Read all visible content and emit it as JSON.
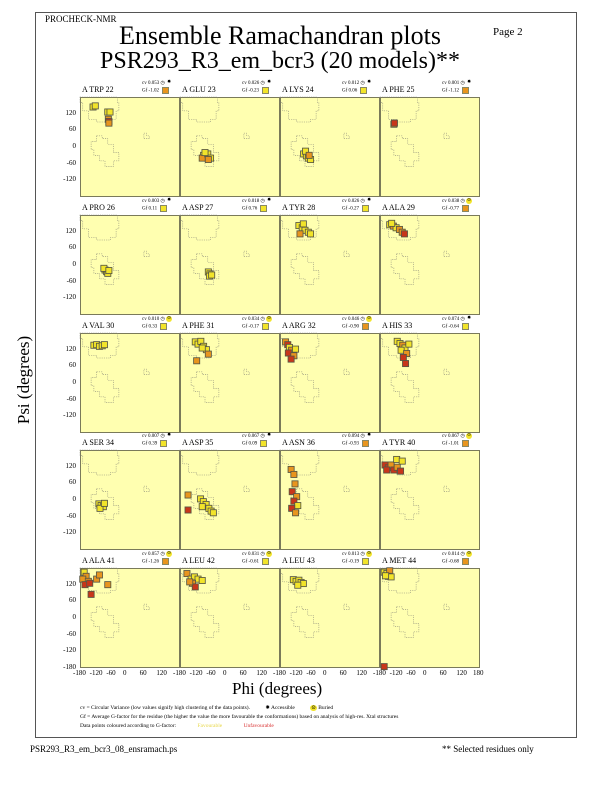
{
  "header": {
    "program": "PROCHECK-NMR",
    "title": "Ensemble Ramachandran plots",
    "subtitle": "PSR293_R3_em_bcr3 (20 models)**",
    "page": "Page  2"
  },
  "axes": {
    "xlabel": "Phi (degrees)",
    "ylabel": "Psi (degrees)",
    "xticks": [
      "-180",
      "-120",
      "-60",
      "0",
      "60",
      "120",
      "180"
    ],
    "yticks": [
      "120",
      "60",
      "0",
      "-60",
      "-120",
      "-180"
    ]
  },
  "colors": {
    "background": "#ffffb0",
    "favourable": "#f2e42a",
    "medium": "#e8951e",
    "unfavourable": "#c8361a"
  },
  "chart_data": {
    "type": "scatter",
    "xlabel": "Phi (degrees)",
    "ylabel": "Psi (degrees)",
    "xlim": [
      -180,
      180
    ],
    "ylim": [
      -180,
      180
    ],
    "panels": [
      {
        "label": "A TRP 22",
        "cv": "cv 0.053",
        "gf": "Gf -1.02",
        "gf_color": "medium",
        "access": "accessible",
        "points": [
          [
            -133,
            144,
            "f"
          ],
          [
            -125,
            148,
            "f"
          ],
          [
            -80,
            126,
            "f"
          ],
          [
            -72,
            126,
            "f"
          ],
          [
            -78,
            100,
            "m"
          ],
          [
            -76,
            92,
            "u"
          ],
          [
            -76,
            86,
            "m"
          ]
        ]
      },
      {
        "label": "A GLU 23",
        "cv": "cv 0.026",
        "gf": "Gf -0.23",
        "gf_color": "favourable",
        "access": "accessible",
        "points": [
          [
            -95,
            -30,
            "f"
          ],
          [
            -85,
            -35,
            "f"
          ],
          [
            -100,
            -40,
            "m"
          ],
          [
            -80,
            -25,
            "f"
          ],
          [
            -70,
            -40,
            "f"
          ],
          [
            -90,
            -20,
            "f"
          ],
          [
            -78,
            -45,
            "m"
          ]
        ]
      },
      {
        "label": "A LYS 24",
        "cv": "cv 0.012",
        "gf": "Gf 0.06",
        "gf_color": "favourable",
        "access": "accessible",
        "points": [
          [
            -95,
            -25,
            "f"
          ],
          [
            -85,
            -32,
            "f"
          ],
          [
            -78,
            -40,
            "f"
          ],
          [
            -70,
            -45,
            "f"
          ],
          [
            -88,
            -15,
            "f"
          ],
          [
            -75,
            -30,
            "m"
          ]
        ]
      },
      {
        "label": "A PHE 25",
        "cv": "cv 0.001",
        "gf": "Gf -1.12",
        "gf_color": "medium",
        "access": "accessible",
        "points": [
          [
            -130,
            82,
            "m"
          ],
          [
            -128,
            86,
            "u"
          ]
        ]
      },
      {
        "label": "A PRO 26",
        "cv": "cv 0.003",
        "gf": "Gf 0.11",
        "gf_color": "favourable",
        "access": "accessible",
        "points": [
          [
            -90,
            -18,
            "f"
          ],
          [
            -84,
            -24,
            "f"
          ],
          [
            -80,
            -30,
            "f"
          ],
          [
            -94,
            -12,
            "f"
          ],
          [
            -76,
            -20,
            "f"
          ]
        ]
      },
      {
        "label": "A ASP 27",
        "cv": "cv 0.018",
        "gf": "Gf 0.76",
        "gf_color": "favourable",
        "access": "accessible",
        "points": [
          [
            -78,
            -25,
            "f"
          ],
          [
            -72,
            -32,
            "f"
          ],
          [
            -74,
            -40,
            "f"
          ],
          [
            -66,
            -36,
            "f"
          ]
        ]
      },
      {
        "label": "A TYR 28",
        "cv": "cv 0.026",
        "gf": "Gf -0.27",
        "gf_color": "favourable",
        "access": "accessible",
        "points": [
          [
            -112,
            142,
            "f"
          ],
          [
            -100,
            134,
            "f"
          ],
          [
            -90,
            125,
            "f"
          ],
          [
            -78,
            118,
            "f"
          ],
          [
            -108,
            112,
            "m"
          ],
          [
            -70,
            112,
            "f"
          ],
          [
            -96,
            148,
            "f"
          ]
        ]
      },
      {
        "label": "A ALA 29",
        "cv": "cv 0.038",
        "gf": "Gf -0.77",
        "gf_color": "medium",
        "access": "buried",
        "points": [
          [
            -145,
            145,
            "f"
          ],
          [
            -132,
            140,
            "m"
          ],
          [
            -122,
            134,
            "f"
          ],
          [
            -110,
            128,
            "m"
          ],
          [
            -100,
            118,
            "m"
          ],
          [
            -92,
            112,
            "u"
          ],
          [
            -138,
            150,
            "f"
          ]
        ]
      },
      {
        "label": "A VAL 30",
        "cv": "cv 0.010",
        "gf": "Gf 0.33",
        "gf_color": "favourable",
        "access": "buried",
        "points": [
          [
            -130,
            136,
            "f"
          ],
          [
            -120,
            138,
            "f"
          ],
          [
            -110,
            132,
            "f"
          ],
          [
            -100,
            134,
            "f"
          ],
          [
            -92,
            138,
            "f"
          ]
        ]
      },
      {
        "label": "A PHE 31",
        "cv": "cv 0.034",
        "gf": "Gf -0.17",
        "gf_color": "favourable",
        "access": "buried",
        "points": [
          [
            -125,
            148,
            "f"
          ],
          [
            -115,
            140,
            "f"
          ],
          [
            -105,
            150,
            "f"
          ],
          [
            -95,
            132,
            "f"
          ],
          [
            -85,
            120,
            "f"
          ],
          [
            -78,
            104,
            "m"
          ],
          [
            -120,
            80,
            "m"
          ],
          [
            -100,
            126,
            "f"
          ]
        ]
      },
      {
        "label": "A ARG 32",
        "cv": "cv 0.046",
        "gf": "Gf -0.90",
        "gf_color": "medium",
        "access": "buried",
        "points": [
          [
            -160,
            148,
            "m"
          ],
          [
            -152,
            138,
            "u"
          ],
          [
            -146,
            128,
            "f"
          ],
          [
            -138,
            118,
            "m"
          ],
          [
            -150,
            108,
            "u"
          ],
          [
            -130,
            98,
            "m"
          ],
          [
            -140,
            86,
            "u"
          ],
          [
            -124,
            122,
            "f"
          ]
        ]
      },
      {
        "label": "A HIS 33",
        "cv": "cv 0.074",
        "gf": "Gf -0.64",
        "gf_color": "favourable",
        "access": "accessible",
        "points": [
          [
            -118,
            150,
            "f"
          ],
          [
            -108,
            142,
            "f"
          ],
          [
            -98,
            136,
            "m"
          ],
          [
            -90,
            126,
            "f"
          ],
          [
            -104,
            118,
            "f"
          ],
          [
            -84,
            106,
            "m"
          ],
          [
            -96,
            92,
            "u"
          ],
          [
            -88,
            70,
            "u"
          ],
          [
            -76,
            140,
            "f"
          ]
        ]
      },
      {
        "label": "A SER 34",
        "cv": "cv 0.007",
        "gf": "Gf 0.39",
        "gf_color": "favourable",
        "access": "accessible",
        "points": [
          [
            -112,
            -14,
            "f"
          ],
          [
            -104,
            -20,
            "f"
          ],
          [
            -96,
            -24,
            "f"
          ],
          [
            -108,
            -30,
            "f"
          ],
          [
            -92,
            -12,
            "f"
          ]
        ]
      },
      {
        "label": "A ASP 35",
        "cv": "cv 0.067",
        "gf": "Gf 0.09",
        "gf_color": "favourable",
        "access": "accessible",
        "points": [
          [
            -151,
            18,
            "m"
          ],
          [
            -151,
            -36,
            "u"
          ],
          [
            -106,
            4,
            "f"
          ],
          [
            -96,
            -6,
            "f"
          ],
          [
            -86,
            -16,
            "f"
          ],
          [
            -76,
            -30,
            "f"
          ],
          [
            -68,
            -40,
            "f"
          ],
          [
            -60,
            -46,
            "f"
          ],
          [
            -100,
            -24,
            "f"
          ]
        ]
      },
      {
        "label": "A ASN 36",
        "cv": "cv 0.094",
        "gf": "Gf -0.93",
        "gf_color": "medium",
        "access": "accessible",
        "points": [
          [
            -140,
            110,
            "m"
          ],
          [
            -130,
            92,
            "m"
          ],
          [
            -126,
            58,
            "m"
          ],
          [
            -136,
            30,
            "u"
          ],
          [
            -120,
            12,
            "m"
          ],
          [
            -130,
            -4,
            "u"
          ],
          [
            -116,
            -20,
            "f"
          ],
          [
            -138,
            -30,
            "u"
          ],
          [
            -124,
            -46,
            "m"
          ]
        ]
      },
      {
        "label": "A TYR 40",
        "cv": "cv 0.067",
        "gf": "Gf -1.01",
        "gf_color": "medium",
        "access": "buried",
        "points": [
          [
            -162,
            126,
            "u"
          ],
          [
            -150,
            116,
            "u"
          ],
          [
            -140,
            126,
            "m"
          ],
          [
            -130,
            108,
            "u"
          ],
          [
            -118,
            118,
            "m"
          ],
          [
            -106,
            104,
            "u"
          ],
          [
            -120,
            146,
            "f"
          ],
          [
            -100,
            140,
            "f"
          ],
          [
            -156,
            108,
            "u"
          ]
        ]
      },
      {
        "label": "A ALA 41",
        "cv": "cv 0.057",
        "gf": "Gf -1.26",
        "gf_color": "medium",
        "access": "buried",
        "points": [
          [
            -165,
            165,
            "f"
          ],
          [
            -158,
            150,
            "m"
          ],
          [
            -170,
            140,
            "m"
          ],
          [
            -150,
            132,
            "m"
          ],
          [
            -162,
            120,
            "u"
          ],
          [
            -145,
            125,
            "u"
          ],
          [
            -120,
            140,
            "m"
          ],
          [
            -110,
            155,
            "m"
          ],
          [
            -80,
            120,
            "m"
          ],
          [
            -140,
            85,
            "u"
          ]
        ]
      },
      {
        "label": "A LEU 42",
        "cv": "cv 0.031",
        "gf": "Gf -0.61",
        "gf_color": "favourable",
        "access": "buried",
        "points": [
          [
            -155,
            160,
            "m"
          ],
          [
            -140,
            140,
            "f"
          ],
          [
            -128,
            148,
            "f"
          ],
          [
            -115,
            140,
            "f"
          ],
          [
            -100,
            135,
            "f"
          ],
          [
            -135,
            125,
            "m"
          ],
          [
            -125,
            112,
            "u"
          ],
          [
            -145,
            130,
            "m"
          ]
        ]
      },
      {
        "label": "A LEU 43",
        "cv": "cv 0.013",
        "gf": "Gf -0.19",
        "gf_color": "favourable",
        "access": "buried",
        "points": [
          [
            -132,
            138,
            "f"
          ],
          [
            -122,
            132,
            "f"
          ],
          [
            -112,
            136,
            "f"
          ],
          [
            -104,
            128,
            "f"
          ],
          [
            -96,
            124,
            "f"
          ],
          [
            -116,
            118,
            "f"
          ]
        ]
      },
      {
        "label": "A MET 44",
        "cv": "cv 0.014",
        "gf": "Gf -0.68",
        "gf_color": "medium",
        "access": "buried",
        "points": [
          [
            -165,
            165,
            "f"
          ],
          [
            -155,
            160,
            "f"
          ],
          [
            -145,
            170,
            "m"
          ],
          [
            -150,
            150,
            "f"
          ],
          [
            -140,
            148,
            "f"
          ],
          [
            -160,
            152,
            "f"
          ],
          [
            -165,
            -175,
            "u"
          ]
        ]
      }
    ]
  },
  "legend": {
    "cv_text": "cv = Circular Variance (low values signify high clustering of the data points).",
    "accessible": "Accessible",
    "buried": "Buried",
    "gf_text": "Gf = Average G-factor for the residue (the higher the value the more favourable the conformations) based on analysis of high-res. Xtal structures",
    "colour_text": "Data points coloured according to G-factor:",
    "favourable": "Favourable",
    "unfavourable": "Unfavourable"
  },
  "footer": {
    "filename": "PSR293_R3_em_bcr3_08_ensramach.ps",
    "note": "** Selected residues only"
  }
}
